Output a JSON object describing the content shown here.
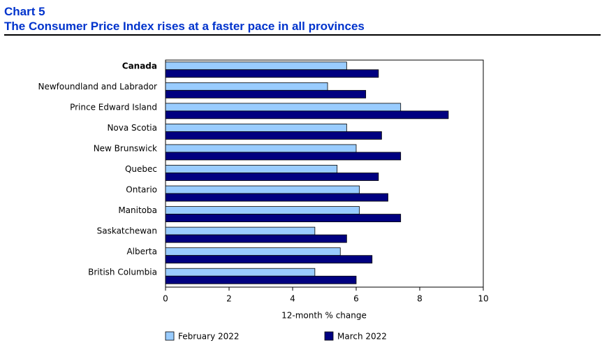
{
  "header": {
    "label": "Chart 5",
    "title": "The Consumer Price Index rises at a faster pace in all provinces"
  },
  "chart_data": {
    "type": "hbar",
    "categories": [
      "Canada",
      "Newfoundland and Labrador",
      "Prince Edward Island",
      "Nova Scotia",
      "New Brunswick",
      "Quebec",
      "Ontario",
      "Manitoba",
      "Saskatchewan",
      "Alberta",
      "British Columbia"
    ],
    "series": [
      {
        "name": "February 2022",
        "color": "#99ccff",
        "values": [
          5.7,
          5.1,
          7.4,
          5.7,
          6.0,
          5.4,
          6.1,
          6.1,
          4.7,
          5.5,
          4.7
        ]
      },
      {
        "name": "March 2022",
        "color": "#000080",
        "values": [
          6.7,
          6.3,
          8.9,
          6.8,
          7.4,
          6.7,
          7.0,
          7.4,
          5.7,
          6.5,
          6.0
        ]
      }
    ],
    "xlabel": "12-month % change",
    "xlim": [
      0,
      10
    ],
    "xticks": [
      0,
      2,
      4,
      6,
      8,
      10
    ],
    "grid": false
  }
}
